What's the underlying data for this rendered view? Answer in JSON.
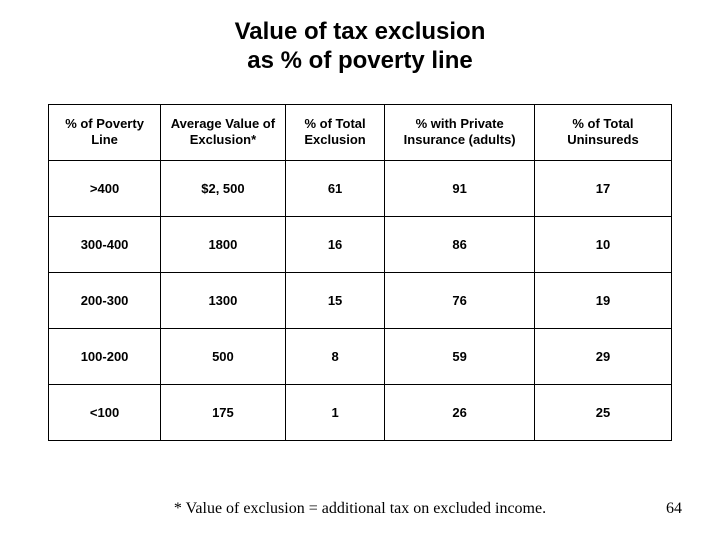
{
  "title_line1": "Value of tax exclusion",
  "title_line2": "as % of poverty line",
  "table": {
    "type": "table",
    "background_color": "#ffffff",
    "border_color": "#000000",
    "header_fontsize": 13,
    "cell_fontsize": 13,
    "font_weight": "bold",
    "column_widths_pct": [
      18,
      20,
      16,
      24,
      22
    ],
    "columns": [
      "% of Poverty Line",
      "Average Value of Exclusion*",
      "% of Total Exclusion",
      "% with Private Insurance (adults)",
      "% of Total Uninsureds"
    ],
    "rows": [
      [
        ">400",
        "$2, 500",
        "61",
        "91",
        "17"
      ],
      [
        "300-400",
        "1800",
        "16",
        "86",
        "10"
      ],
      [
        "200-300",
        "1300",
        "15",
        "76",
        "19"
      ],
      [
        "100-200",
        "500",
        "8",
        "59",
        "29"
      ],
      [
        "<100",
        "175",
        "1",
        "26",
        "25"
      ]
    ]
  },
  "footnote": "* Value of exclusion = additional tax on excluded income.",
  "page_number": "64"
}
